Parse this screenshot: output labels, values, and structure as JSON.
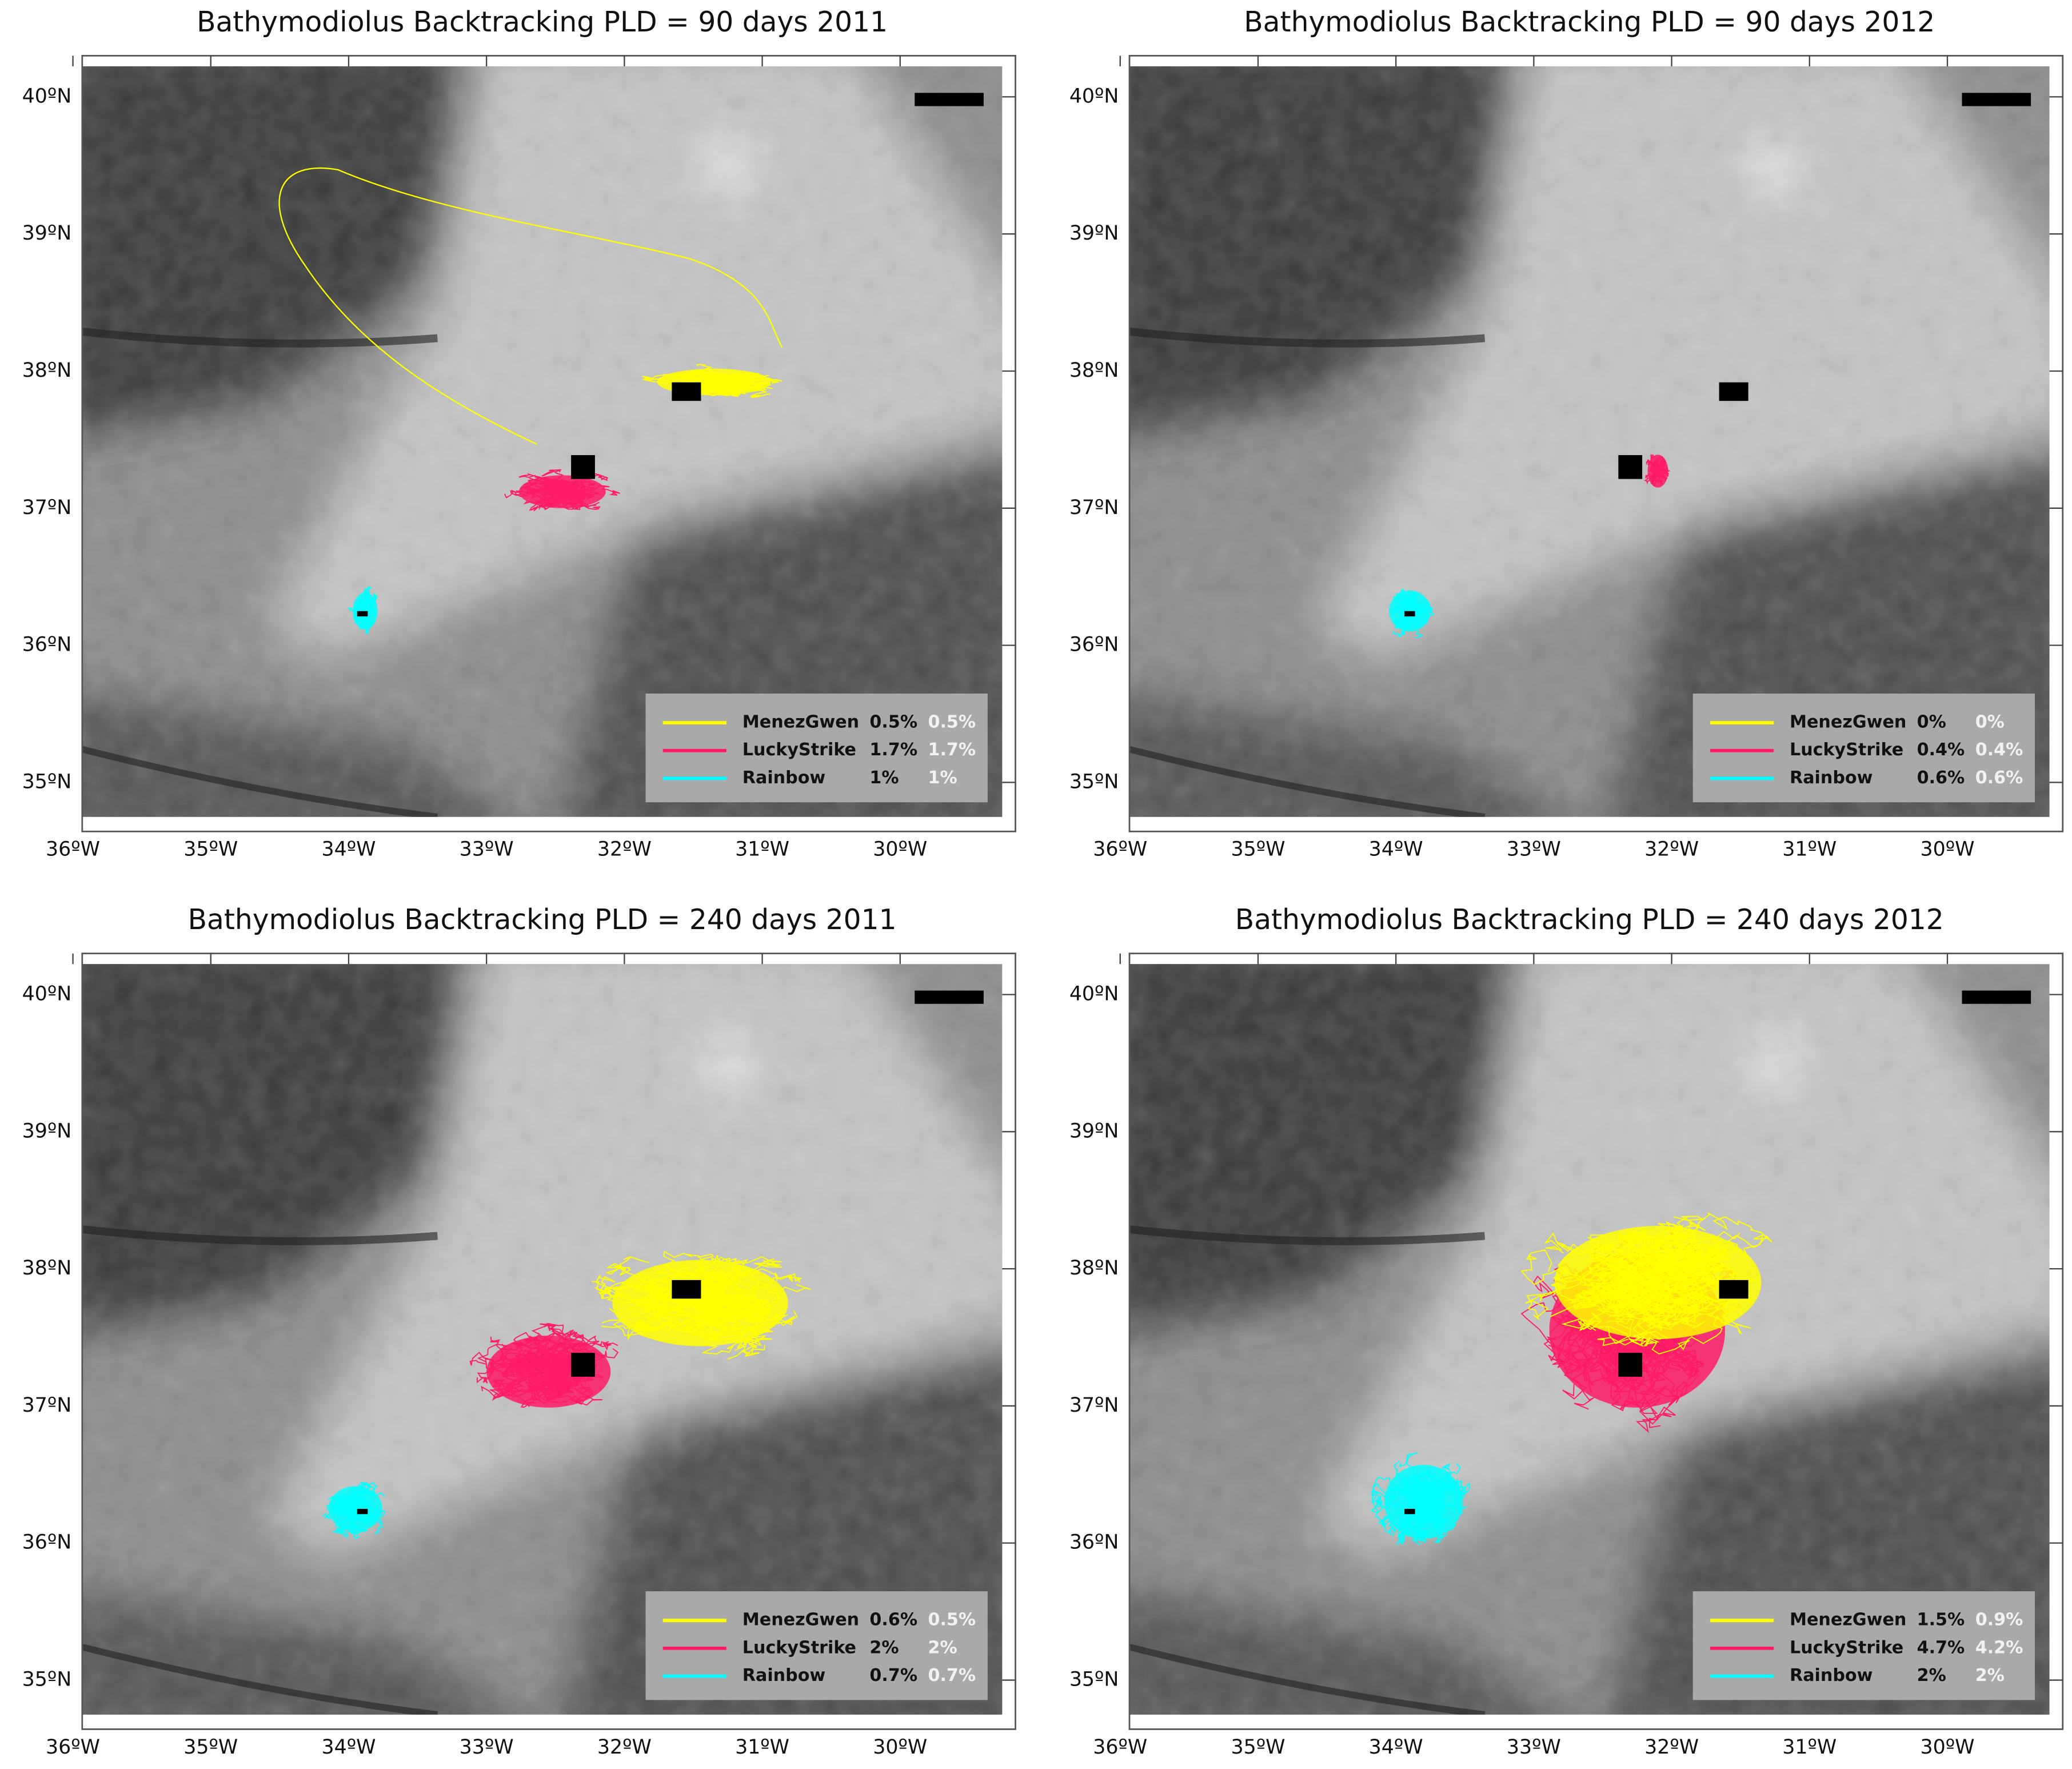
{
  "panels": [
    {
      "title": "Bathymodiolus Backtracking  PLD = 90 days 2011",
      "legend": [
        {
          "name": "MenezGwen",
          "color": "#ffff00",
          "a": "0.5%",
          "b": "0.5%"
        },
        {
          "name": "LuckyStrike",
          "color": "#ff1a66",
          "a": "1.7%",
          "b": "1.7%"
        },
        {
          "name": "Rainbow",
          "color": "#00ffff",
          "a": "1%",
          "b": "1%"
        }
      ]
    },
    {
      "title": "Bathymodiolus Backtracking  PLD = 90 days 2012",
      "legend": [
        {
          "name": "MenezGwen",
          "color": "#ffff00",
          "a": "0%",
          "b": "0%"
        },
        {
          "name": "LuckyStrike",
          "color": "#ff1a66",
          "a": "0.4%",
          "b": "0.4%"
        },
        {
          "name": "Rainbow",
          "color": "#00ffff",
          "a": "0.6%",
          "b": "0.6%"
        }
      ]
    },
    {
      "title": "Bathymodiolus Backtracking  PLD = 240 days 2011",
      "legend": [
        {
          "name": "MenezGwen",
          "color": "#ffff00",
          "a": "0.6%",
          "b": "0.5%"
        },
        {
          "name": "LuckyStrike",
          "color": "#ff1a66",
          "a": "2%",
          "b": "2%"
        },
        {
          "name": "Rainbow",
          "color": "#00ffff",
          "a": "0.7%",
          "b": "0.7%"
        }
      ]
    },
    {
      "title": "Bathymodiolus Backtracking  PLD = 240 days 2012",
      "legend": [
        {
          "name": "MenezGwen",
          "color": "#ffff00",
          "a": "1.5%",
          "b": "0.9%"
        },
        {
          "name": "LuckyStrike",
          "color": "#ff1a66",
          "a": "4.7%",
          "b": "4.2%"
        },
        {
          "name": "Rainbow",
          "color": "#00ffff",
          "a": "2%",
          "b": "2%"
        }
      ]
    }
  ],
  "lat_ticks": [
    "40ºN",
    "39ºN",
    "38ºN",
    "37ºN",
    "36ºN",
    "35ºN"
  ],
  "lon_ticks": [
    "36ºW",
    "35ºW",
    "34ºW",
    "33ºW",
    "32ºW",
    "31ºW",
    "30ºW"
  ]
}
